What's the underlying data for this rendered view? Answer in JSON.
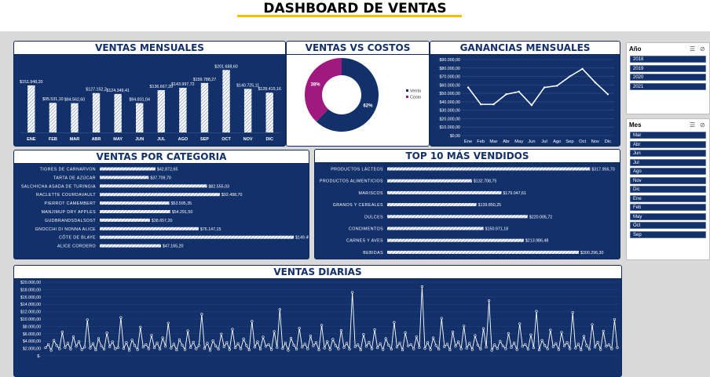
{
  "page": {
    "title": "DASHBOARD DE VENTAS"
  },
  "slicers": {
    "year": {
      "title": "Año",
      "items": [
        "2018",
        "2019",
        "2020",
        "2021"
      ]
    },
    "month": {
      "title": "Mes",
      "items": [
        "Mar",
        "Abr",
        "Jun",
        "Jul",
        "Ago",
        "Nov",
        "Dic",
        "Ene",
        "Feb",
        "May",
        "Oct",
        "Sep"
      ]
    }
  },
  "colors": {
    "navy": "#12306a",
    "accent": "#f2c200",
    "donut_venta": "#12306a",
    "donut_costo": "#a0197f"
  },
  "chart_data": [
    {
      "id": "ventas_mensuales",
      "type": "bar",
      "title": "VENTAS MENSUALES",
      "categories": [
        "ENE",
        "FEB",
        "MAR",
        "ABR",
        "MAY",
        "JUN",
        "JUL",
        "AGO",
        "SEP",
        "OCT",
        "NOV",
        "DIC"
      ],
      "values": [
        151948.2,
        95531.1,
        94562.6,
        127152.2,
        124349.41,
        94831.04,
        136667.2,
        143997.72,
        159788.27,
        201688.6,
        140725.11,
        128415.16
      ],
      "labels": [
        "$151.948,20",
        "$95.531,10",
        "$94.562,60",
        "$127.152,2",
        "$124.349,41",
        "$94.831,04",
        "$136.667,20",
        "$143.997,72",
        "$159.788,27",
        "$201.688,60",
        "$140.725,11",
        "$128.415,16"
      ],
      "ylim": [
        0,
        215000
      ],
      "pattern": "hatched"
    },
    {
      "id": "ventas_vs_costos",
      "type": "pie",
      "title": "VENTAS VS COSTOS",
      "slices": [
        {
          "name": "Venta",
          "value": 62,
          "label": "62%"
        },
        {
          "name": "Costo",
          "value": 38,
          "label": "38%"
        }
      ],
      "legend": "right"
    },
    {
      "id": "ganancias_mensuales",
      "type": "line",
      "title": "GANANCIAS MENSUALES",
      "categories": [
        "Ene",
        "Feb",
        "Mar",
        "Abr",
        "May",
        "Jun",
        "Jul",
        "Ago",
        "Sep",
        "Oct",
        "Nov",
        "Dic"
      ],
      "values": [
        57000,
        37000,
        37000,
        49000,
        52000,
        36000,
        57000,
        59000,
        70000,
        79000,
        63000,
        49000
      ],
      "ylim": [
        0,
        90000
      ],
      "yticks": [
        "$0,00",
        "$10.000,00",
        "$20.000,00",
        "$30.000,00",
        "$40.000,00",
        "$50.000,00",
        "$60.000,00",
        "$70.000,00",
        "$80.000,00",
        "$90.000,00"
      ],
      "grid": true
    },
    {
      "id": "ventas_por_categoria",
      "type": "bar",
      "orientation": "horizontal",
      "title": "VENTAS POR CATEGORIA",
      "categories": [
        "TIGRES DE CARNARVON",
        "TARTA DE AZÚCAR",
        "SALCHICHA ASADA DE TURINGIA",
        "RACLETTE COURDAVAULT",
        "PIERROT CAMEMBERT",
        "MANJIMUP DRY APPLES",
        "GUDBRANDSDALSOST",
        "GNOCCHI DI NONNA ALICE",
        "CÔTE DE BLAYE",
        "ALICE CORDERO"
      ],
      "values": [
        42872.65,
        37709.7,
        82555.03,
        92498.7,
        53595.35,
        54291.5,
        38657.2,
        76147.15,
        149453.75,
        47165.2
      ],
      "labels": [
        "$42.872,65",
        "$37.709,70",
        "$82.555,03",
        "$92.498,70",
        "$53.595,35",
        "$54.291,50",
        "$38.657,20",
        "$76.147,15",
        "$149.453,75",
        "$47.165,20"
      ],
      "xlim": [
        0,
        150000
      ]
    },
    {
      "id": "top10_vendidos",
      "type": "bar",
      "orientation": "horizontal",
      "title": "TOP 10 MÁS VENDIDOS",
      "categories": [
        "PRODUCTOS LÁCTEOS",
        "PRODUCTOS ALIMENTICIOS",
        "MARISCOS",
        "GRANOS Y CEREALES",
        "DULCES",
        "CONDIMENTOS",
        "CARNES Y AVES",
        "BEBIDAS"
      ],
      "values": [
        317956.7,
        132708.75,
        179047.61,
        139850.25,
        220005.72,
        150971.18,
        213986.48,
        300296.3
      ],
      "labels": [
        "$317.956,70",
        "$132.708,75",
        "$179.047,61",
        "$139.850,25",
        "$220.005,72",
        "$150.971,18",
        "$213.986,48",
        "$300.296,30"
      ],
      "xlim": [
        0,
        320000
      ]
    },
    {
      "id": "ventas_diarias",
      "type": "line",
      "title": "VENTAS DIARIAS",
      "ylim": [
        0,
        20000
      ],
      "yticks": [
        "$-",
        "$2.000,00",
        "$4.000,00",
        "$6.000,00",
        "$8.000,00",
        "$10.000,00",
        "$12.000,00",
        "$14.000,00",
        "$16.000,00",
        "$18.000,00",
        "$20.000,00"
      ],
      "values": [
        2200,
        3100,
        1500,
        4200,
        2800,
        1900,
        6500,
        2300,
        3400,
        1800,
        5200,
        2600,
        3900,
        1700,
        2400,
        9800,
        2100,
        3300,
        1600,
        4700,
        2700,
        1800,
        6200,
        2500,
        3800,
        1900,
        2300,
        10400,
        2000,
        3600,
        1500,
        4300,
        2800,
        1700,
        7800,
        2400,
        3100,
        1900,
        5600,
        2200,
        3500,
        1800,
        4900,
        2600,
        8900,
        2100,
        3200,
        1600,
        4400,
        2900,
        1700,
        6800,
        2300,
        3700,
        1900,
        2800,
        11300,
        2000,
        3400,
        1500,
        4100,
        2700,
        1800,
        5900,
        2500,
        3600,
        1700,
        7200,
        2200,
        3300,
        1900,
        4600,
        2800,
        1600,
        9400,
        2400,
        3800,
        1800,
        5100,
        2600,
        3100,
        1700,
        6600,
        2300,
        12600,
        2000,
        3500,
        1500,
        4800,
        2900,
        1800,
        7500,
        2400,
        3200,
        1900,
        5400,
        2700,
        3600,
        1600,
        8300,
        2100,
        3900,
        1700,
        4500,
        2800,
        1900,
        6900,
        2300,
        3400,
        1800,
        17200,
        2500,
        3000,
        1600,
        5800,
        2600,
        3700,
        1900,
        7100,
        2200,
        3300,
        1700,
        4700,
        2900,
        1800,
        9100,
        2400,
        3500,
        1600,
        6300,
        2700,
        3100,
        1900,
        5200,
        2300,
        18800,
        2000,
        3600,
        1700,
        4900,
        2800,
        1800,
        10200,
        2500,
        3200,
        1600,
        6500,
        2600,
        3800,
        1900,
        8100,
        2100,
        3400,
        1700,
        5500,
        2900,
        1800,
        7400,
        2400,
        15000,
        1500,
        3000,
        2000,
        4000,
        2700,
        1900,
        6100,
        2300,
        3500,
        1700,
        8700,
        2600,
        3100,
        1800,
        5700,
        2200,
        12100,
        1600,
        4200,
        2800,
        1900,
        7000,
        2500,
        3300,
        1700,
        6400,
        2700,
        3600,
        1900,
        11800,
        2100,
        3200,
        1600,
        5300,
        2800,
        1800,
        8500,
        2400,
        3700,
        1700,
        6700,
        2600,
        3000,
        1900,
        9900,
        2200
      ]
    }
  ]
}
